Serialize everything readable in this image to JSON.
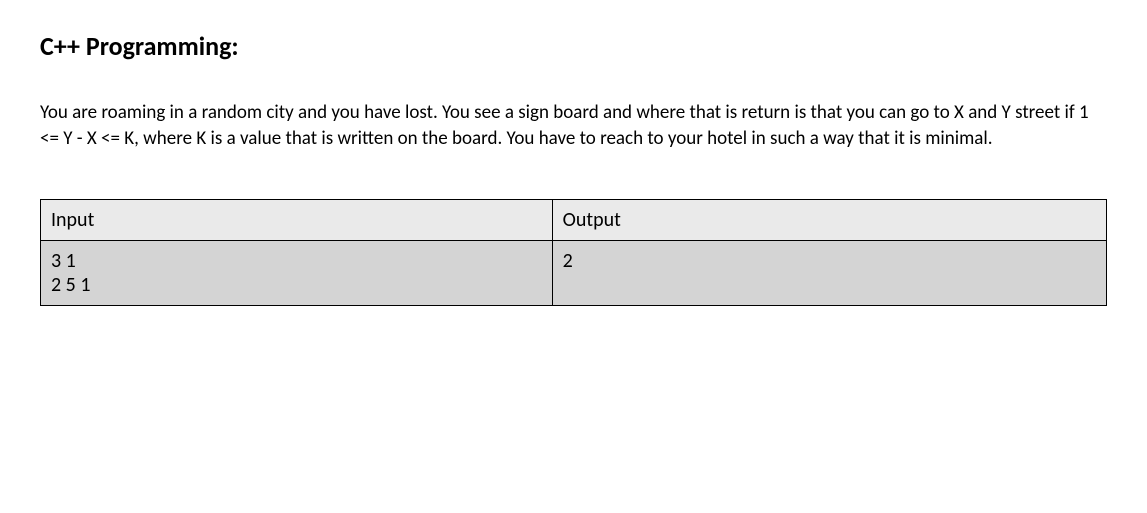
{
  "heading": "C++ Programming:",
  "description": "You are roaming in a random city and you have lost. You see a sign board and where that is return is that you can go to X and Y street if 1 <= Y - X <= K, where K is a value that is written on the board. You have to reach to your hotel in such a way that it is minimal.",
  "table": {
    "headers": {
      "input": "Input",
      "output": "Output"
    },
    "rows": [
      {
        "input": "3 1\n2 5 1",
        "output": "2"
      }
    ]
  },
  "styles": {
    "background_color": "#ffffff",
    "heading_fontsize": 26,
    "heading_fontweight": "bold",
    "description_fontsize": 19,
    "table_header_bg": "#eaeaea",
    "table_cell_bg": "#d4d4d4",
    "table_border_color": "#000000",
    "table_fontsize": 20
  }
}
